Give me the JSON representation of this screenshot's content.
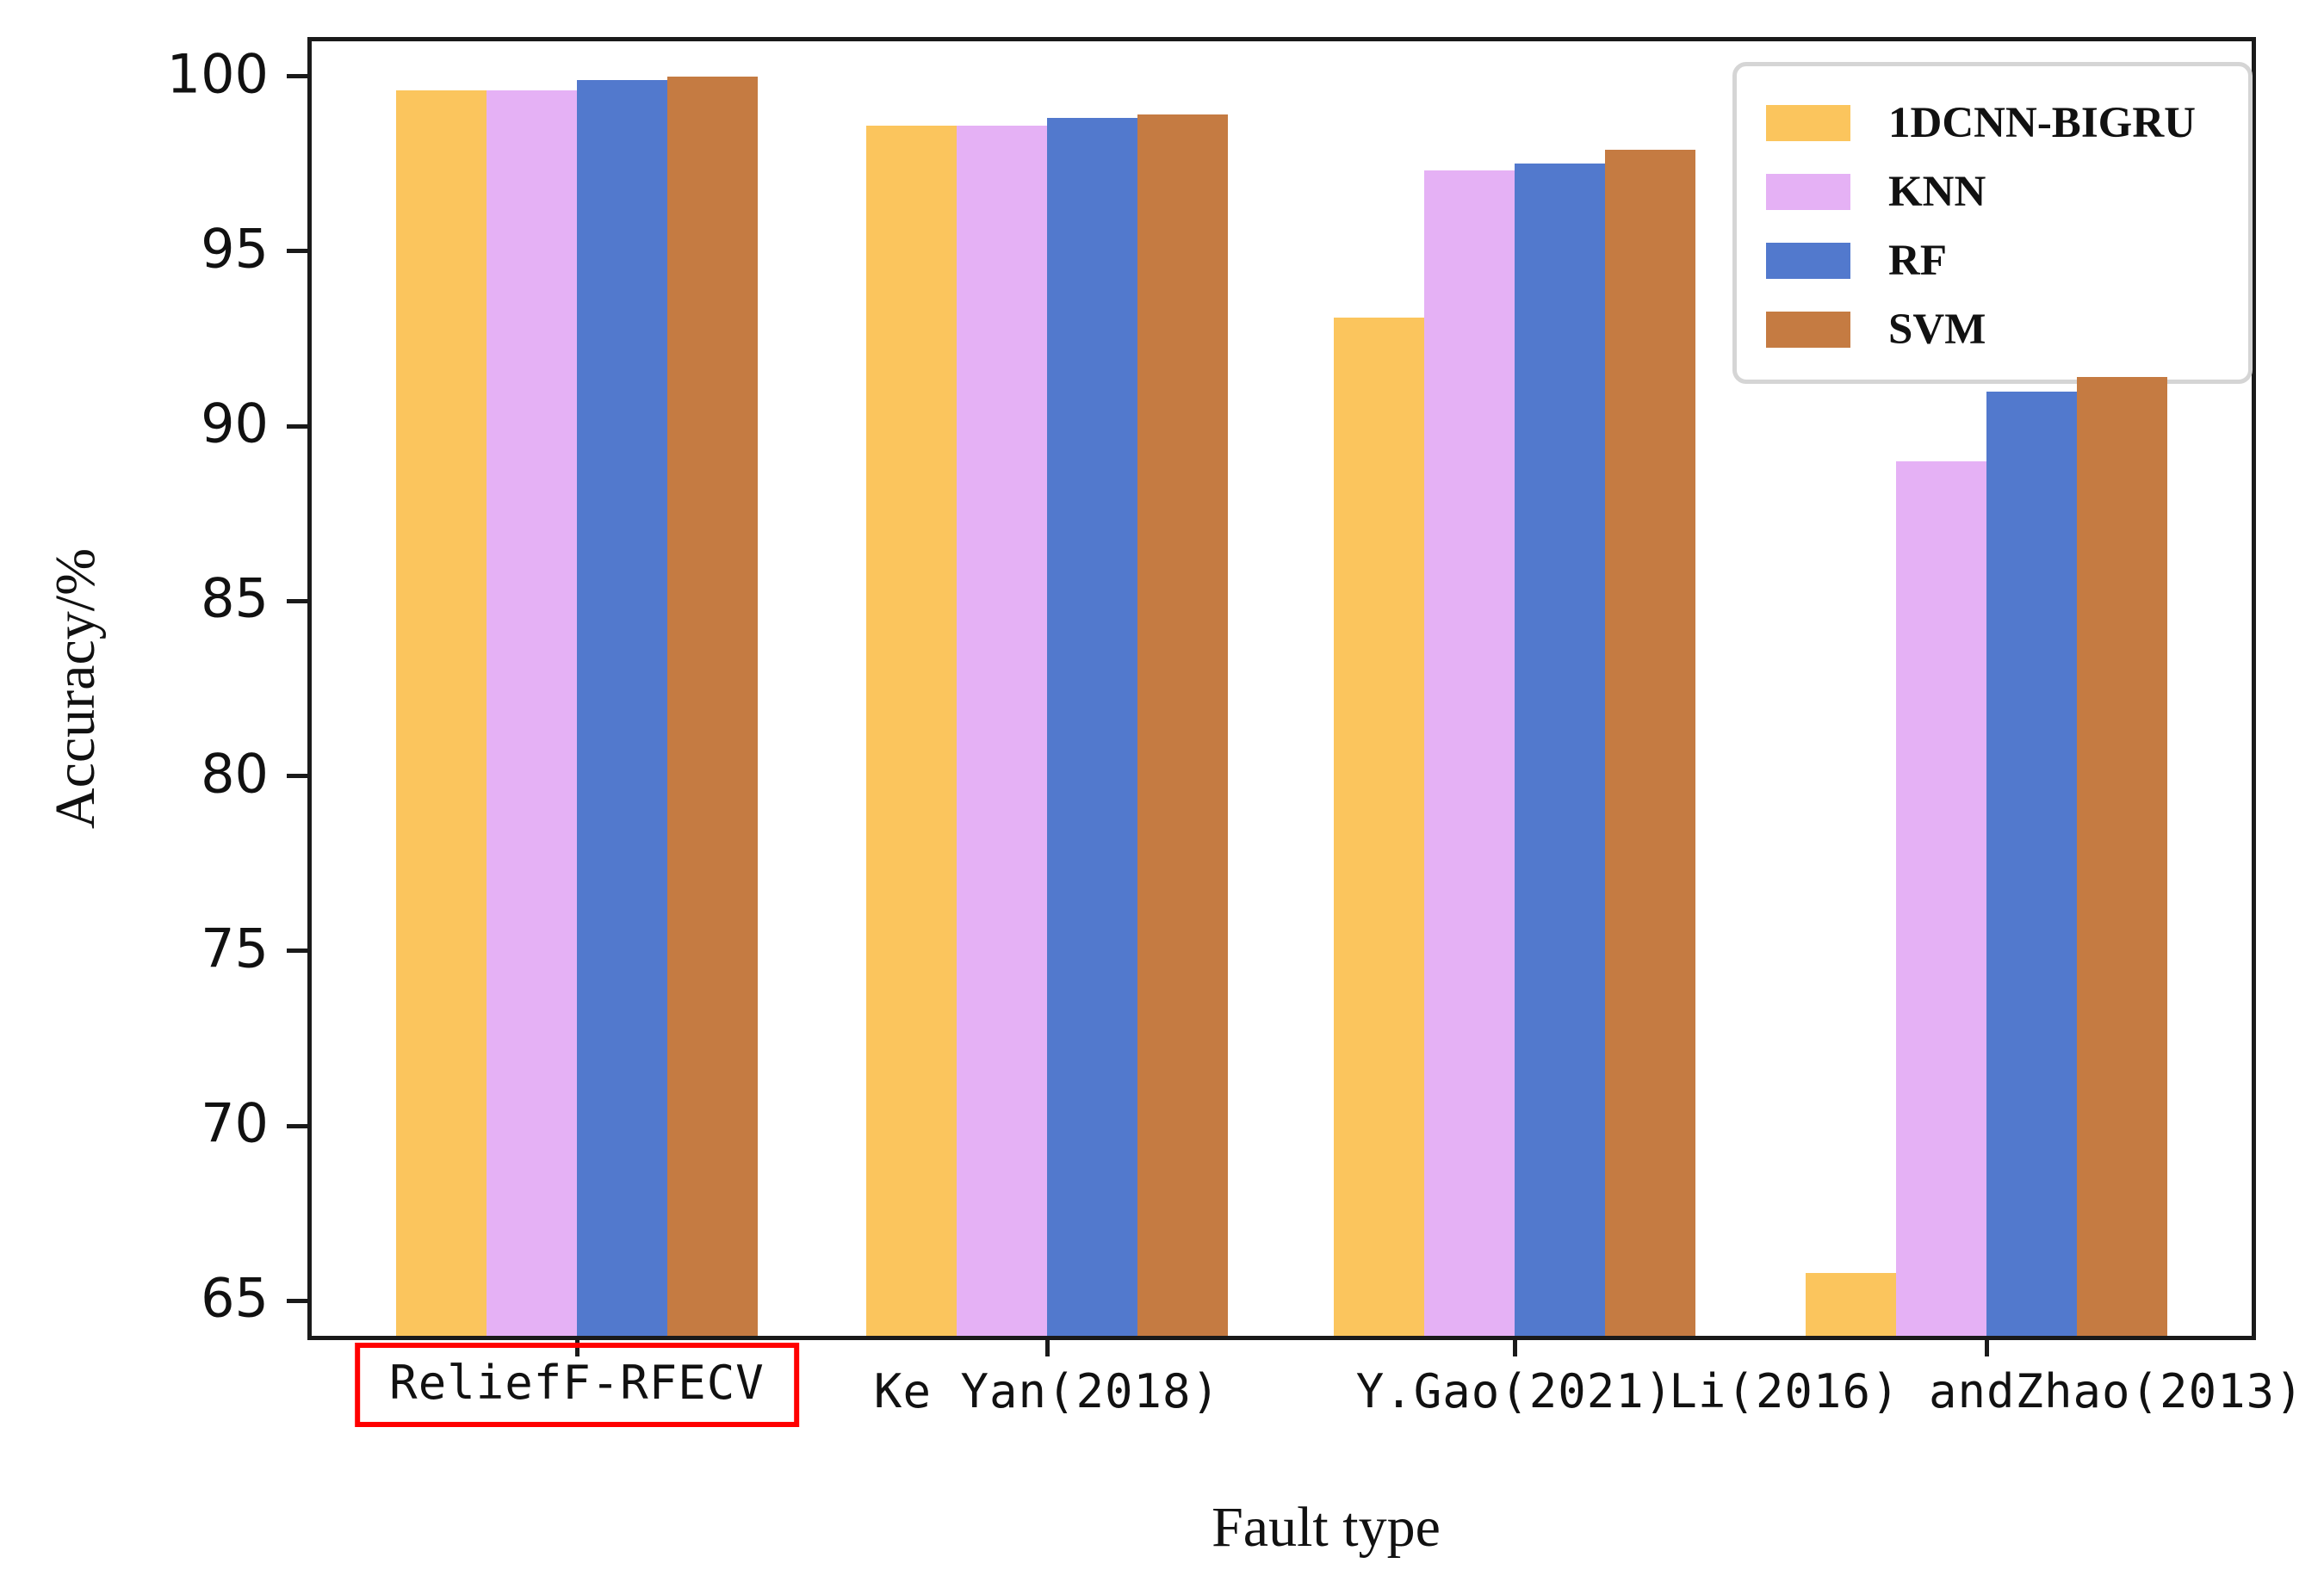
{
  "chart_data": {
    "type": "bar",
    "title": "",
    "xlabel": "Fault type",
    "ylabel": "Accuracy/%",
    "ylim": [
      64,
      101
    ],
    "yticks": [
      65,
      70,
      75,
      80,
      85,
      90,
      95,
      100
    ],
    "categories": [
      "ReliefF-RFECV",
      "Ke Yan(2018)",
      "Y.Gao(2021)",
      "Li(2016) andZhao(2013)"
    ],
    "highlighted_category": "ReliefF-RFECV",
    "highlight_box_color": "#ff0000",
    "legend_position": "upper right",
    "grid": false,
    "series": [
      {
        "name": "1DCNN-BIGRU",
        "color": "#FBC55D",
        "values": [
          99.6,
          98.6,
          93.1,
          65.8
        ]
      },
      {
        "name": "KNN",
        "color": "#E5B1F5",
        "values": [
          99.6,
          98.6,
          97.3,
          89.0
        ]
      },
      {
        "name": "RF",
        "color": "#5279CD",
        "values": [
          99.9,
          98.8,
          97.5,
          91.0
        ]
      },
      {
        "name": "SVM",
        "color": "#C57B42",
        "values": [
          100.0,
          98.9,
          97.9,
          91.4
        ]
      }
    ]
  }
}
